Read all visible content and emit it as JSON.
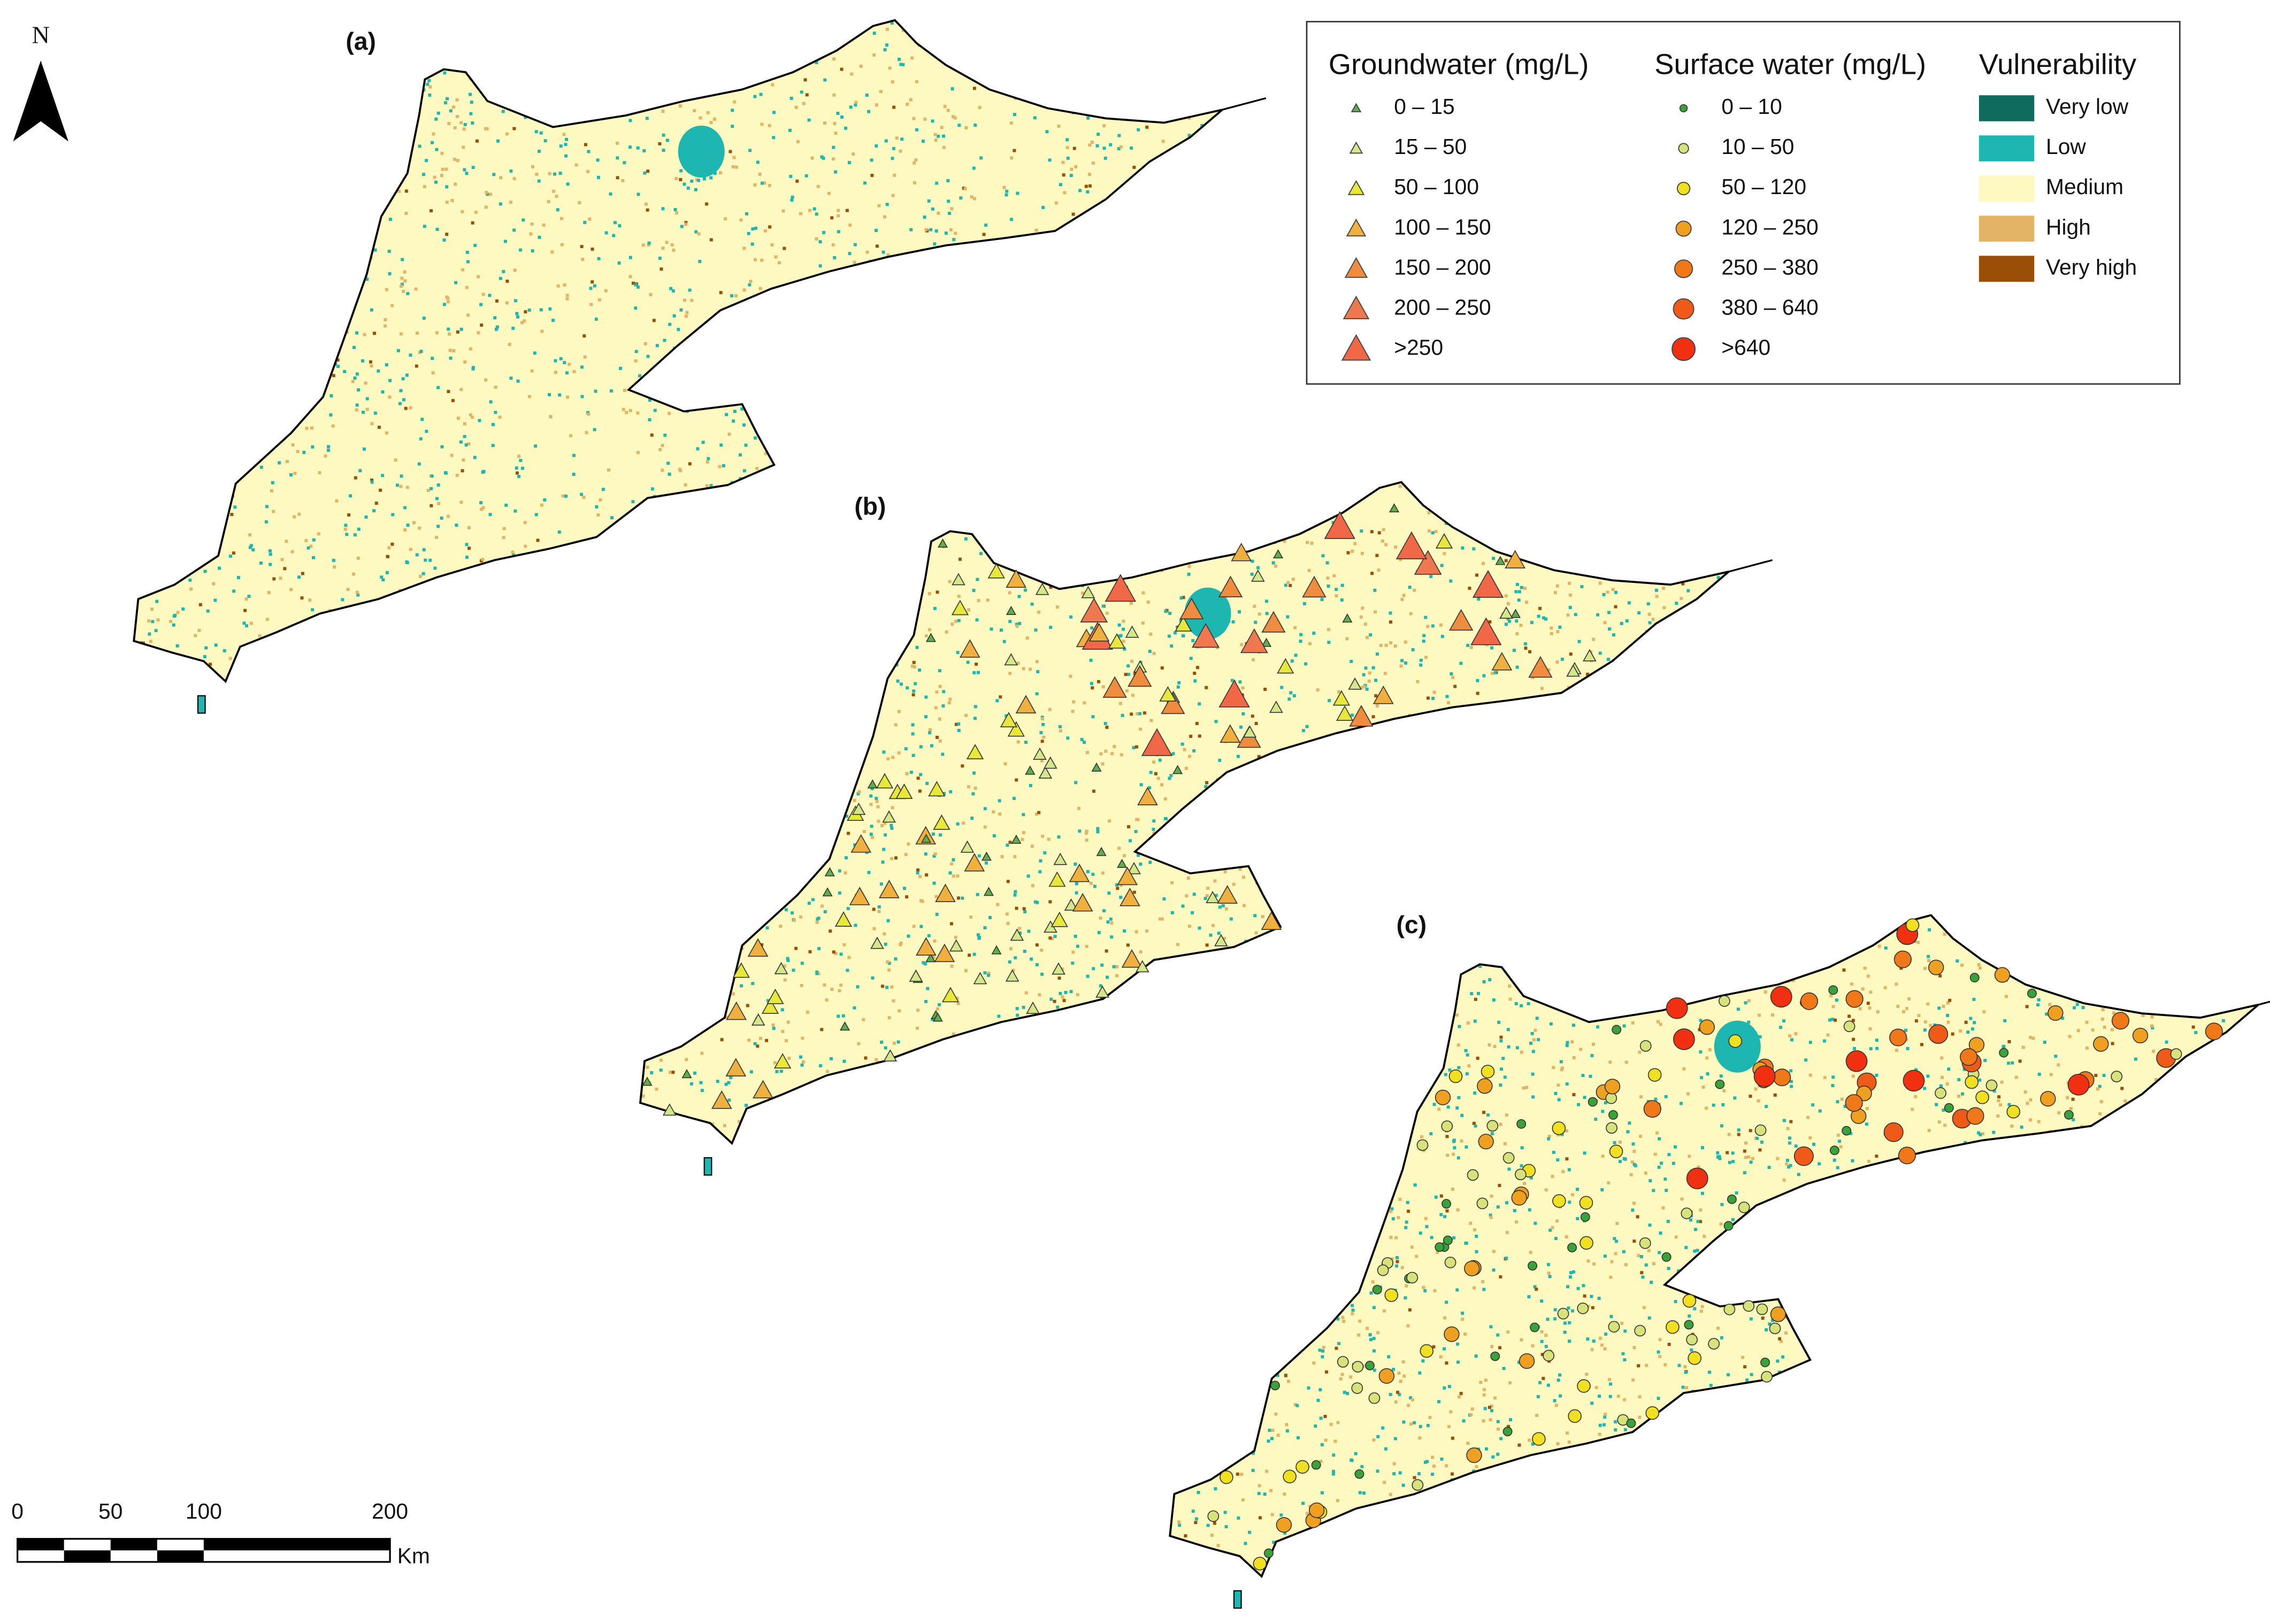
{
  "north_arrow": "N",
  "panels": [
    {
      "label": "(a)"
    },
    {
      "label": "(b)"
    },
    {
      "label": "(c)"
    }
  ],
  "legend": {
    "groundwater": {
      "title": "Groundwater (mg/L)",
      "classes": [
        "0 – 15",
        "15 – 50",
        "50 – 100",
        "100 – 150",
        "150 –  200",
        "200 – 250",
        ">250"
      ],
      "colors": [
        "#5fb04a",
        "#d4e88a",
        "#e8e83a",
        "#f0b040",
        "#f08c40",
        "#f07850",
        "#f06848"
      ]
    },
    "surface_water": {
      "title": "Surface water (mg/L)",
      "classes": [
        "0 – 10",
        "10 – 50",
        "50 – 120",
        "120 – 250",
        "250 –  380",
        "380 – 640",
        ">640"
      ],
      "colors": [
        "#3aa23a",
        "#d8e27a",
        "#f0e020",
        "#f0a020",
        "#f07818",
        "#f05a18",
        "#f03010"
      ]
    },
    "vulnerability": {
      "title": "Vulnerability",
      "classes": [
        "Very low",
        "Low",
        "Medium",
        "High",
        "Very high"
      ],
      "colors": [
        "#0e6b5e",
        "#1db6b0",
        "#fdf9c1",
        "#e4b466",
        "#9a4e06"
      ]
    }
  },
  "scale_bar": {
    "ticks": [
      0,
      50,
      100,
      200
    ],
    "unit": "Km"
  }
}
